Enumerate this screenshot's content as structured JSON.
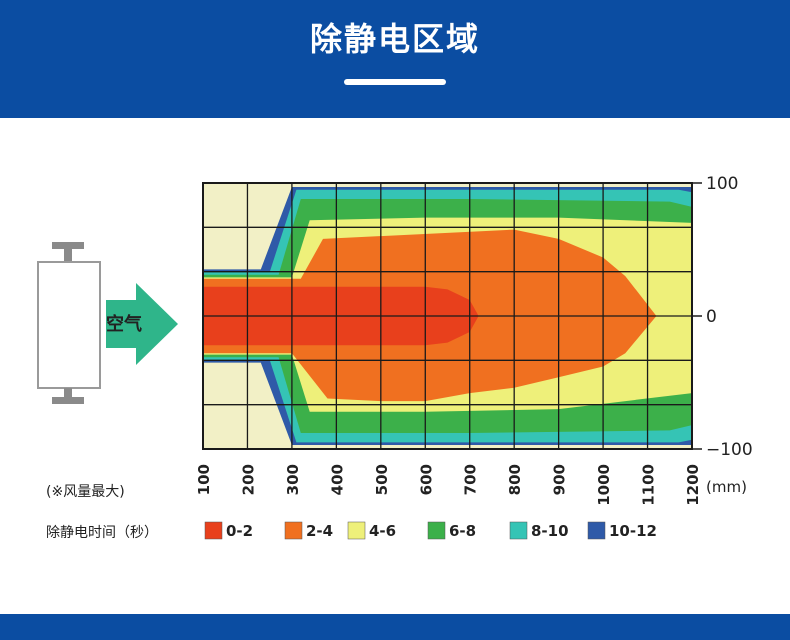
{
  "header": {
    "title": "除静电区域"
  },
  "device": {
    "arrow_label": "空气"
  },
  "colors": {
    "brand": "#0b4da2",
    "arrow": "#2fb58a",
    "grid": "#1a1a1a"
  },
  "chart_data": {
    "type": "heatmap",
    "title": "",
    "xlabel": "",
    "ylabel": "",
    "xlim": [
      100,
      1200
    ],
    "ylim": [
      -100,
      100
    ],
    "x_ticks": [
      "100",
      "200",
      "300",
      "400",
      "500",
      "600",
      "700",
      "800",
      "900",
      "1000",
      "1100",
      "1200"
    ],
    "x_unit": "(mm)",
    "y_ticks": [
      "100",
      "0",
      "−100"
    ],
    "note": "(※风量最大)",
    "legend_title": "除静电时间（秒）",
    "legend": [
      {
        "label": "0-2",
        "color": "#e8401c"
      },
      {
        "label": "2-4",
        "color": "#f07020"
      },
      {
        "label": "4-6",
        "color": "#eef07a"
      },
      {
        "label": "6-8",
        "color": "#3cb04a"
      },
      {
        "label": "8-10",
        "color": "#35c4b5"
      },
      {
        "label": "10-12",
        "color": "#2f5aa8"
      }
    ],
    "no_data_color": "#f2f0c6",
    "zones": [
      {
        "range": "10-12",
        "top": [
          [
            100,
            35
          ],
          [
            230,
            35
          ],
          [
            300,
            97
          ],
          [
            1200,
            97
          ]
        ],
        "bot": [
          [
            100,
            -35
          ],
          [
            230,
            -35
          ],
          [
            300,
            -97
          ],
          [
            1200,
            -97
          ]
        ]
      },
      {
        "range": "8-10",
        "top": [
          [
            100,
            33
          ],
          [
            250,
            33
          ],
          [
            310,
            95
          ],
          [
            1170,
            95
          ],
          [
            1200,
            93
          ]
        ],
        "bot": [
          [
            100,
            -33
          ],
          [
            250,
            -33
          ],
          [
            310,
            -95
          ],
          [
            1170,
            -95
          ],
          [
            1200,
            -93
          ]
        ]
      },
      {
        "range": "6-8",
        "top": [
          [
            100,
            31
          ],
          [
            270,
            31
          ],
          [
            320,
            88
          ],
          [
            700,
            88
          ],
          [
            1150,
            86
          ],
          [
            1200,
            82
          ]
        ],
        "bot": [
          [
            100,
            -31
          ],
          [
            270,
            -31
          ],
          [
            320,
            -88
          ],
          [
            700,
            -88
          ],
          [
            1150,
            -86
          ],
          [
            1200,
            -82
          ]
        ]
      },
      {
        "range": "4-6",
        "top": [
          [
            100,
            29
          ],
          [
            300,
            29
          ],
          [
            340,
            72
          ],
          [
            600,
            74
          ],
          [
            900,
            74
          ],
          [
            1200,
            70
          ]
        ],
        "bot": [
          [
            100,
            -29
          ],
          [
            300,
            -29
          ],
          [
            340,
            -72
          ],
          [
            600,
            -72
          ],
          [
            900,
            -70
          ],
          [
            1200,
            -58
          ]
        ]
      },
      {
        "range": "2-4",
        "top": [
          [
            100,
            28
          ],
          [
            320,
            28
          ],
          [
            370,
            58
          ],
          [
            800,
            65
          ],
          [
            900,
            58
          ],
          [
            1000,
            44
          ],
          [
            1050,
            30
          ],
          [
            1120,
            0
          ]
        ],
        "bot": [
          [
            100,
            -28
          ],
          [
            300,
            -28
          ],
          [
            380,
            -62
          ],
          [
            500,
            -64
          ],
          [
            600,
            -64
          ],
          [
            700,
            -58
          ],
          [
            800,
            -54
          ],
          [
            900,
            -46
          ],
          [
            1000,
            -38
          ],
          [
            1050,
            -28
          ],
          [
            1120,
            0
          ]
        ]
      },
      {
        "range": "0-2",
        "top": [
          [
            100,
            22
          ],
          [
            600,
            22
          ],
          [
            650,
            20
          ],
          [
            700,
            12
          ],
          [
            720,
            0
          ]
        ],
        "bot": [
          [
            100,
            -22
          ],
          [
            600,
            -22
          ],
          [
            650,
            -20
          ],
          [
            700,
            -12
          ],
          [
            720,
            0
          ]
        ]
      }
    ]
  }
}
